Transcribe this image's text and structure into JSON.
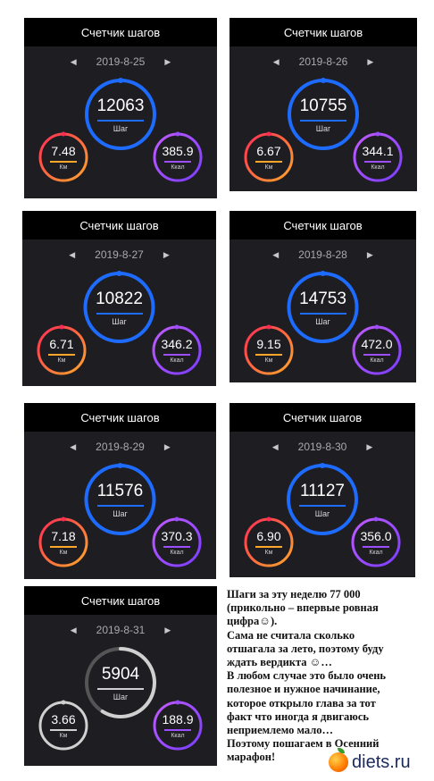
{
  "panels": [
    {
      "title": "Счетчик шагов",
      "date": "2019-8-25",
      "steps": "12063",
      "steps_label": "Шаг",
      "km": "7.48",
      "km_label": "Км",
      "kcal": "385.9",
      "kcal_label": "Ккал",
      "steps_progress": 1.0
    },
    {
      "title": "Счетчик шагов",
      "date": "2019-8-26",
      "steps": "10755",
      "steps_label": "Шаг",
      "km": "6.67",
      "km_label": "Км",
      "kcal": "344.1",
      "kcal_label": "Ккал",
      "steps_progress": 1.0
    },
    {
      "title": "Счетчик шагов",
      "date": "2019-8-27",
      "steps": "10822",
      "steps_label": "Шаг",
      "km": "6.71",
      "km_label": "Км",
      "kcal": "346.2",
      "kcal_label": "Ккал",
      "steps_progress": 1.0
    },
    {
      "title": "Счетчик шагов",
      "date": "2019-8-28",
      "steps": "14753",
      "steps_label": "Шаг",
      "km": "9.15",
      "km_label": "Км",
      "kcal": "472.0",
      "kcal_label": "Ккал",
      "steps_progress": 1.0
    },
    {
      "title": "Счетчик шагов",
      "date": "2019-8-29",
      "steps": "11576",
      "steps_label": "Шаг",
      "km": "7.18",
      "km_label": "Км",
      "kcal": "370.3",
      "kcal_label": "Ккал",
      "steps_progress": 1.0
    },
    {
      "title": "Счетчик шагов",
      "date": "2019-8-30",
      "steps": "11127",
      "steps_label": "Шаг",
      "km": "6.90",
      "km_label": "Км",
      "kcal": "356.0",
      "kcal_label": "Ккал",
      "steps_progress": 1.0
    },
    {
      "title": "Счетчик шагов",
      "date": "2019-8-31",
      "steps": "5904",
      "steps_label": "Шаг",
      "km": "3.66",
      "km_label": "Км",
      "kcal": "188.9",
      "kcal_label": "Ккал",
      "steps_progress": 0.59
    }
  ],
  "nav": {
    "prev_icon": "chevron-left-icon",
    "next_icon": "chevron-right-icon"
  },
  "colors": {
    "steps_ring": "#1e6bff",
    "km_ring_start": "#ff2d55",
    "km_ring_end": "#ffa62b",
    "kcal_ring": "#9b4dff",
    "incomplete_ring": "#d0d0d0"
  },
  "caption": [
    "Шаги за эту неделю 77 000",
    "(прикольно – впервые ровная",
    "цифра☺).",
    "Сама не считала сколько",
    "отшагала за лето, поэтому буду",
    "ждать вердикта ☺…",
    "В любом случае это было очень",
    "полезное и нужное начинание,",
    "которое открыло глава за тот",
    "факт что иногда я двигаюсь",
    "неприемлемо мало…",
    "Поэтому пошагаем в Осенний",
    "марафон!"
  ],
  "logo": {
    "text": "diets.ru"
  }
}
